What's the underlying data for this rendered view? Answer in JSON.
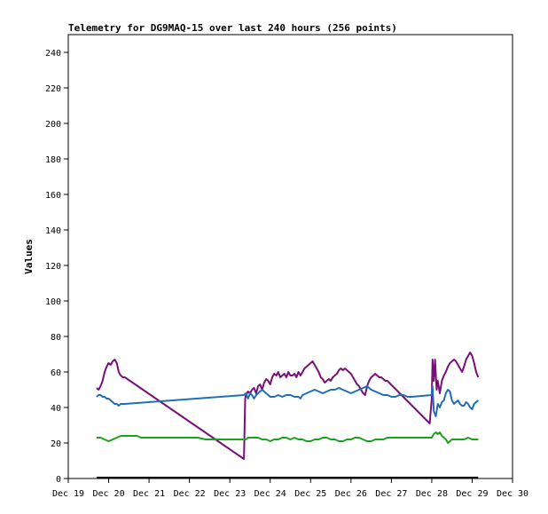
{
  "chart_data": {
    "type": "line",
    "title": "Telemetry for DG9MAQ-15 over last 240 hours (256 points)",
    "ylabel": "Values",
    "xlabel": "",
    "ylim": [
      0,
      250
    ],
    "xlim": [
      0,
      11
    ],
    "x_ticks": [
      {
        "x": 0,
        "label": "Dec 19"
      },
      {
        "x": 1,
        "label": "Dec 20"
      },
      {
        "x": 2,
        "label": "Dec 21"
      },
      {
        "x": 3,
        "label": "Dec 22"
      },
      {
        "x": 4,
        "label": "Dec 23"
      },
      {
        "x": 5,
        "label": "Dec 24"
      },
      {
        "x": 6,
        "label": "Dec 25"
      },
      {
        "x": 7,
        "label": "Dec 26"
      },
      {
        "x": 8,
        "label": "Dec 27"
      },
      {
        "x": 9,
        "label": "Dec 28"
      },
      {
        "x": 10,
        "label": "Dec 29"
      },
      {
        "x": 11,
        "label": "Dec 30"
      }
    ],
    "y_ticks": [
      0,
      20,
      40,
      60,
      80,
      100,
      120,
      140,
      160,
      180,
      200,
      220,
      240
    ],
    "grid": false,
    "legend": "none",
    "series": [
      {
        "color": "#7a0f7a",
        "points": [
          [
            0.7,
            51
          ],
          [
            0.75,
            50
          ],
          [
            0.8,
            52
          ],
          [
            0.85,
            55
          ],
          [
            0.9,
            60
          ],
          [
            0.95,
            63
          ],
          [
            1.0,
            65
          ],
          [
            1.05,
            64
          ],
          [
            1.1,
            66
          ],
          [
            1.15,
            67
          ],
          [
            1.2,
            65
          ],
          [
            1.25,
            60
          ],
          [
            1.3,
            58
          ],
          [
            1.35,
            57
          ],
          [
            1.4,
            57
          ],
          [
            4.35,
            11
          ],
          [
            4.38,
            45
          ],
          [
            4.4,
            47
          ],
          [
            4.45,
            49
          ],
          [
            4.5,
            48
          ],
          [
            4.55,
            50
          ],
          [
            4.6,
            51
          ],
          [
            4.65,
            48
          ],
          [
            4.7,
            52
          ],
          [
            4.75,
            53
          ],
          [
            4.8,
            50
          ],
          [
            4.85,
            54
          ],
          [
            4.9,
            56
          ],
          [
            4.95,
            55
          ],
          [
            5.0,
            53
          ],
          [
            5.05,
            57
          ],
          [
            5.1,
            59
          ],
          [
            5.15,
            58
          ],
          [
            5.2,
            60
          ],
          [
            5.25,
            57
          ],
          [
            5.3,
            58
          ],
          [
            5.35,
            59
          ],
          [
            5.4,
            57
          ],
          [
            5.45,
            60
          ],
          [
            5.5,
            58
          ],
          [
            5.55,
            58
          ],
          [
            5.6,
            59
          ],
          [
            5.65,
            57
          ],
          [
            5.7,
            60
          ],
          [
            5.75,
            58
          ],
          [
            5.8,
            60
          ],
          [
            5.85,
            62
          ],
          [
            5.9,
            63
          ],
          [
            5.95,
            64
          ],
          [
            6.0,
            65
          ],
          [
            6.05,
            66
          ],
          [
            6.1,
            64
          ],
          [
            6.15,
            62
          ],
          [
            6.2,
            60
          ],
          [
            6.25,
            57
          ],
          [
            6.3,
            56
          ],
          [
            6.35,
            54
          ],
          [
            6.4,
            55
          ],
          [
            6.45,
            56
          ],
          [
            6.5,
            55
          ],
          [
            6.55,
            57
          ],
          [
            6.6,
            58
          ],
          [
            6.65,
            59
          ],
          [
            6.7,
            61
          ],
          [
            6.75,
            62
          ],
          [
            6.8,
            61
          ],
          [
            6.85,
            62
          ],
          [
            6.9,
            61
          ],
          [
            6.95,
            60
          ],
          [
            7.0,
            59
          ],
          [
            7.05,
            57
          ],
          [
            7.1,
            55
          ],
          [
            7.15,
            53
          ],
          [
            7.2,
            52
          ],
          [
            7.25,
            50
          ],
          [
            7.3,
            48
          ],
          [
            7.35,
            47
          ],
          [
            7.4,
            52
          ],
          [
            7.45,
            55
          ],
          [
            7.5,
            57
          ],
          [
            7.55,
            58
          ],
          [
            7.6,
            59
          ],
          [
            7.65,
            58
          ],
          [
            7.7,
            57
          ],
          [
            7.75,
            57
          ],
          [
            7.8,
            56
          ],
          [
            7.85,
            55
          ],
          [
            7.9,
            55
          ],
          [
            8.95,
            31
          ],
          [
            9.0,
            45
          ],
          [
            9.02,
            67
          ],
          [
            9.05,
            55
          ],
          [
            9.08,
            67
          ],
          [
            9.12,
            50
          ],
          [
            9.15,
            55
          ],
          [
            9.2,
            48
          ],
          [
            9.25,
            55
          ],
          [
            9.3,
            58
          ],
          [
            9.35,
            60
          ],
          [
            9.4,
            63
          ],
          [
            9.45,
            65
          ],
          [
            9.5,
            66
          ],
          [
            9.55,
            67
          ],
          [
            9.6,
            66
          ],
          [
            9.65,
            64
          ],
          [
            9.7,
            62
          ],
          [
            9.75,
            60
          ],
          [
            9.8,
            63
          ],
          [
            9.85,
            67
          ],
          [
            9.9,
            69
          ],
          [
            9.95,
            71
          ],
          [
            10.0,
            69
          ],
          [
            10.05,
            65
          ],
          [
            10.1,
            60
          ],
          [
            10.15,
            57
          ]
        ]
      },
      {
        "color": "#1f6fb5",
        "points": [
          [
            0.7,
            46
          ],
          [
            0.75,
            47
          ],
          [
            0.8,
            47
          ],
          [
            0.85,
            46
          ],
          [
            0.9,
            46
          ],
          [
            0.95,
            45
          ],
          [
            1.0,
            45
          ],
          [
            1.05,
            44
          ],
          [
            1.1,
            43
          ],
          [
            1.15,
            42
          ],
          [
            1.2,
            42
          ],
          [
            1.25,
            41
          ],
          [
            1.3,
            42
          ],
          [
            1.35,
            42
          ],
          [
            1.4,
            42
          ],
          [
            4.35,
            47
          ],
          [
            4.4,
            48
          ],
          [
            4.45,
            45
          ],
          [
            4.5,
            48
          ],
          [
            4.55,
            47
          ],
          [
            4.6,
            45
          ],
          [
            4.65,
            47
          ],
          [
            4.7,
            48
          ],
          [
            4.75,
            49
          ],
          [
            4.8,
            50
          ],
          [
            4.85,
            49
          ],
          [
            4.9,
            48
          ],
          [
            4.95,
            47
          ],
          [
            5.0,
            46
          ],
          [
            5.1,
            46
          ],
          [
            5.2,
            47
          ],
          [
            5.3,
            46
          ],
          [
            5.4,
            47
          ],
          [
            5.5,
            47
          ],
          [
            5.6,
            46
          ],
          [
            5.7,
            46
          ],
          [
            5.75,
            45
          ],
          [
            5.8,
            47
          ],
          [
            5.9,
            48
          ],
          [
            6.0,
            49
          ],
          [
            6.1,
            50
          ],
          [
            6.2,
            49
          ],
          [
            6.3,
            48
          ],
          [
            6.4,
            49
          ],
          [
            6.5,
            50
          ],
          [
            6.6,
            50
          ],
          [
            6.7,
            51
          ],
          [
            6.8,
            50
          ],
          [
            6.9,
            49
          ],
          [
            7.0,
            48
          ],
          [
            7.1,
            49
          ],
          [
            7.2,
            50
          ],
          [
            7.3,
            51
          ],
          [
            7.4,
            52
          ],
          [
            7.5,
            50
          ],
          [
            7.6,
            49
          ],
          [
            7.7,
            48
          ],
          [
            7.8,
            47
          ],
          [
            7.9,
            47
          ],
          [
            8.0,
            46
          ],
          [
            8.1,
            46
          ],
          [
            8.2,
            47
          ],
          [
            8.3,
            47
          ],
          [
            8.4,
            46
          ],
          [
            8.5,
            46
          ],
          [
            9.0,
            47
          ],
          [
            9.02,
            52
          ],
          [
            9.05,
            38
          ],
          [
            9.1,
            35
          ],
          [
            9.15,
            42
          ],
          [
            9.2,
            40
          ],
          [
            9.25,
            43
          ],
          [
            9.3,
            44
          ],
          [
            9.35,
            48
          ],
          [
            9.4,
            50
          ],
          [
            9.45,
            49
          ],
          [
            9.5,
            44
          ],
          [
            9.55,
            42
          ],
          [
            9.6,
            43
          ],
          [
            9.65,
            44
          ],
          [
            9.7,
            42
          ],
          [
            9.75,
            41
          ],
          [
            9.8,
            41
          ],
          [
            9.85,
            43
          ],
          [
            9.9,
            42
          ],
          [
            9.95,
            40
          ],
          [
            10.0,
            39
          ],
          [
            10.05,
            42
          ],
          [
            10.1,
            43
          ],
          [
            10.15,
            44
          ]
        ]
      },
      {
        "color": "#1aa31a",
        "points": [
          [
            0.7,
            23
          ],
          [
            0.8,
            23
          ],
          [
            0.9,
            22
          ],
          [
            1.0,
            21
          ],
          [
            1.1,
            22
          ],
          [
            1.2,
            23
          ],
          [
            1.3,
            24
          ],
          [
            1.4,
            24
          ],
          [
            1.5,
            24
          ],
          [
            1.6,
            24
          ],
          [
            1.7,
            24
          ],
          [
            1.8,
            23
          ],
          [
            1.9,
            23
          ],
          [
            2.0,
            23
          ],
          [
            2.2,
            23
          ],
          [
            2.4,
            23
          ],
          [
            2.6,
            23
          ],
          [
            2.8,
            23
          ],
          [
            3.0,
            23
          ],
          [
            3.2,
            23
          ],
          [
            3.4,
            22
          ],
          [
            3.6,
            22
          ],
          [
            3.8,
            22
          ],
          [
            4.0,
            22
          ],
          [
            4.2,
            22
          ],
          [
            4.35,
            22
          ],
          [
            4.4,
            22
          ],
          [
            4.45,
            23
          ],
          [
            4.5,
            23
          ],
          [
            4.7,
            23
          ],
          [
            4.8,
            22
          ],
          [
            4.9,
            22
          ],
          [
            5.0,
            21
          ],
          [
            5.1,
            22
          ],
          [
            5.2,
            22
          ],
          [
            5.3,
            23
          ],
          [
            5.4,
            23
          ],
          [
            5.5,
            22
          ],
          [
            5.6,
            23
          ],
          [
            5.7,
            22
          ],
          [
            5.8,
            22
          ],
          [
            5.9,
            21
          ],
          [
            6.0,
            21
          ],
          [
            6.1,
            22
          ],
          [
            6.2,
            22
          ],
          [
            6.3,
            23
          ],
          [
            6.4,
            23
          ],
          [
            6.5,
            22
          ],
          [
            6.6,
            22
          ],
          [
            6.7,
            21
          ],
          [
            6.8,
            21
          ],
          [
            6.9,
            22
          ],
          [
            7.0,
            22
          ],
          [
            7.1,
            23
          ],
          [
            7.2,
            23
          ],
          [
            7.3,
            22
          ],
          [
            7.4,
            21
          ],
          [
            7.5,
            21
          ],
          [
            7.6,
            22
          ],
          [
            7.7,
            22
          ],
          [
            7.8,
            22
          ],
          [
            7.9,
            23
          ],
          [
            8.0,
            23
          ],
          [
            8.2,
            23
          ],
          [
            8.4,
            23
          ],
          [
            8.6,
            23
          ],
          [
            8.8,
            23
          ],
          [
            9.0,
            23
          ],
          [
            9.05,
            25
          ],
          [
            9.1,
            26
          ],
          [
            9.15,
            25
          ],
          [
            9.2,
            26
          ],
          [
            9.25,
            24
          ],
          [
            9.3,
            23
          ],
          [
            9.35,
            22
          ],
          [
            9.4,
            20
          ],
          [
            9.45,
            21
          ],
          [
            9.5,
            22
          ],
          [
            9.6,
            22
          ],
          [
            9.7,
            22
          ],
          [
            9.8,
            22
          ],
          [
            9.9,
            23
          ],
          [
            10.0,
            22
          ],
          [
            10.1,
            22
          ],
          [
            10.15,
            22
          ]
        ]
      },
      {
        "color": "#000000",
        "points": [
          [
            0.7,
            0.5
          ],
          [
            10.15,
            0.5
          ]
        ]
      }
    ]
  }
}
